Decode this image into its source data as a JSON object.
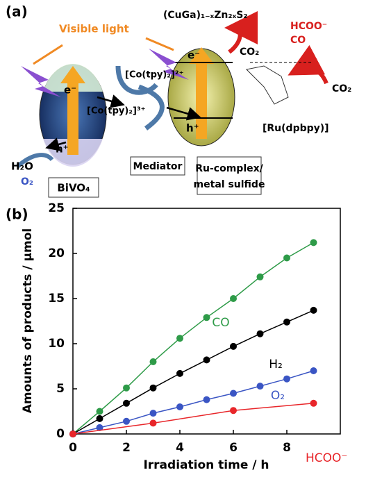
{
  "diagram": {
    "panel_label": "(a)",
    "visible_light": "Visible light",
    "left_electron": "e⁻",
    "left_hole": "h⁺",
    "right_electron": "e⁻",
    "right_hole": "h⁺",
    "mediator_ox": "[Co(tpy)₂]²⁺",
    "mediator_red": "[Co(tpy)₂]³⁺",
    "mediator": "Mediator",
    "water": "H₂O",
    "oxygen": "O₂",
    "bivo4": "BiVO₄",
    "sulfide_formula": "(CuGa)₁₋ₓZn₂ₓS₂",
    "co_product": "CO",
    "co2_reactant": "CO₂",
    "hcoo_product": "HCOO⁻",
    "co_product2": "CO",
    "co2_reactant2": "CO₂",
    "ru_complex_name": "[Ru(dpbpy)]",
    "ru_complex_box": [
      "Ru-complex/",
      "metal sulfide"
    ]
  },
  "chart_data": {
    "type": "line",
    "panel_label": "(b)",
    "x_label": "Irradiation time / h",
    "y_label": "Amounts of products / µmol",
    "xlim": [
      0,
      10
    ],
    "xticks": [
      0,
      2,
      4,
      6,
      8
    ],
    "ylim": [
      0,
      25
    ],
    "yticks": [
      0,
      5,
      10,
      15,
      20,
      25
    ],
    "series": [
      {
        "name": "CO",
        "color": "#2e9b48",
        "x": [
          0,
          1,
          2,
          3,
          4,
          5,
          6,
          7,
          8,
          9
        ],
        "values": [
          0,
          2.5,
          5.1,
          8.0,
          10.6,
          12.9,
          15.0,
          17.4,
          19.5,
          21.2
        ]
      },
      {
        "name": "H₂",
        "color": "#000000",
        "x": [
          0,
          1,
          2,
          3,
          4,
          5,
          6,
          7,
          8,
          9
        ],
        "values": [
          0,
          1.7,
          3.4,
          5.1,
          6.7,
          8.2,
          9.7,
          11.1,
          12.4,
          13.7
        ]
      },
      {
        "name": "O₂",
        "color": "#3a55c4",
        "x": [
          0,
          1,
          2,
          3,
          4,
          5,
          6,
          7,
          8,
          9
        ],
        "values": [
          0,
          0.7,
          1.4,
          2.3,
          3.0,
          3.8,
          4.5,
          5.3,
          6.1,
          7.0
        ]
      },
      {
        "name": "HCOO⁻",
        "color": "#e8262a",
        "x": [
          0,
          3,
          6,
          9
        ],
        "values": [
          0,
          1.2,
          2.6,
          3.4
        ]
      }
    ]
  }
}
